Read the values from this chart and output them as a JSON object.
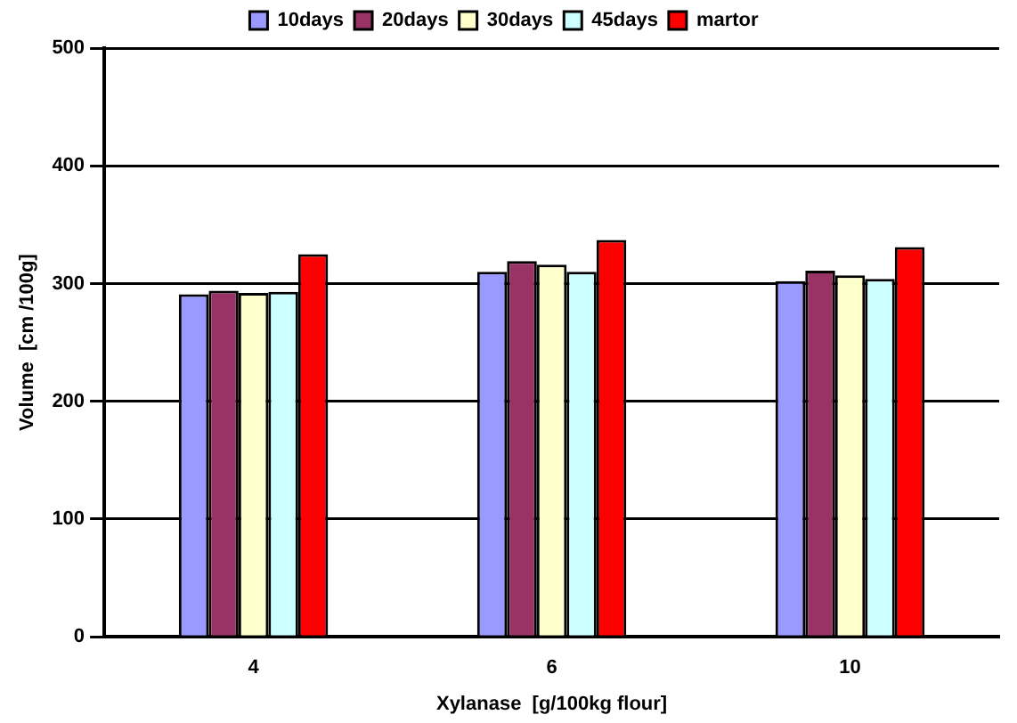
{
  "chart_data": {
    "type": "bar",
    "xlabel": "Xylanase  [g/100kg flour]",
    "ylabel": "Volume  [cm /100g]",
    "categories": [
      "4",
      "6",
      "10"
    ],
    "series": [
      {
        "name": "10days",
        "color": "#9999ff",
        "values": [
          291,
          310,
          302
        ]
      },
      {
        "name": "20days",
        "color": "#993366",
        "values": [
          294,
          319,
          311
        ]
      },
      {
        "name": "30days",
        "color": "#ffffcc",
        "values": [
          292,
          316,
          307
        ]
      },
      {
        "name": "45days",
        "color": "#ccffff",
        "values": [
          293,
          310,
          304
        ]
      },
      {
        "name": "martor",
        "color": "#ff0000",
        "values": [
          325,
          337,
          331
        ]
      }
    ],
    "ylim": [
      0,
      500
    ],
    "yticks": [
      0,
      100,
      200,
      300,
      400,
      500
    ],
    "grid": "y",
    "legend": "top"
  }
}
